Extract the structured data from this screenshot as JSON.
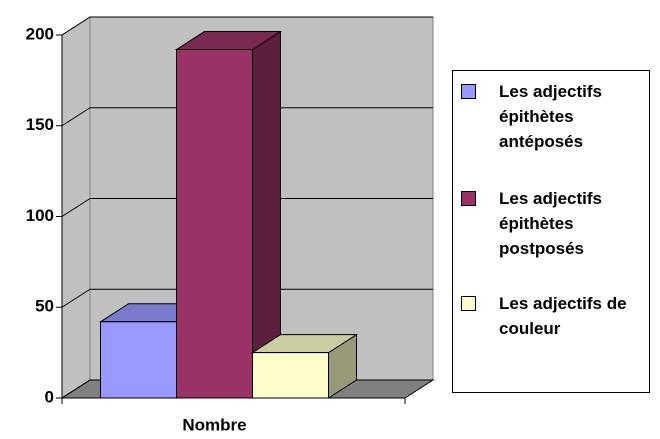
{
  "chart_data": {
    "type": "bar",
    "categories": [
      "Nombre"
    ],
    "series": [
      {
        "name": "Les adjectifs épithètes antéposés",
        "color": "#9999ff",
        "values": [
          42
        ]
      },
      {
        "name": "Les adjectifs épithètes postposés",
        "color": "#993366",
        "values": [
          192
        ]
      },
      {
        "name": "Les adjectifs de couleur",
        "color": "#ffffcc",
        "values": [
          25
        ]
      }
    ],
    "ylim": [
      0,
      200
    ],
    "yticks": [
      0,
      50,
      100,
      150,
      200
    ],
    "grid": true,
    "legend": "right"
  }
}
